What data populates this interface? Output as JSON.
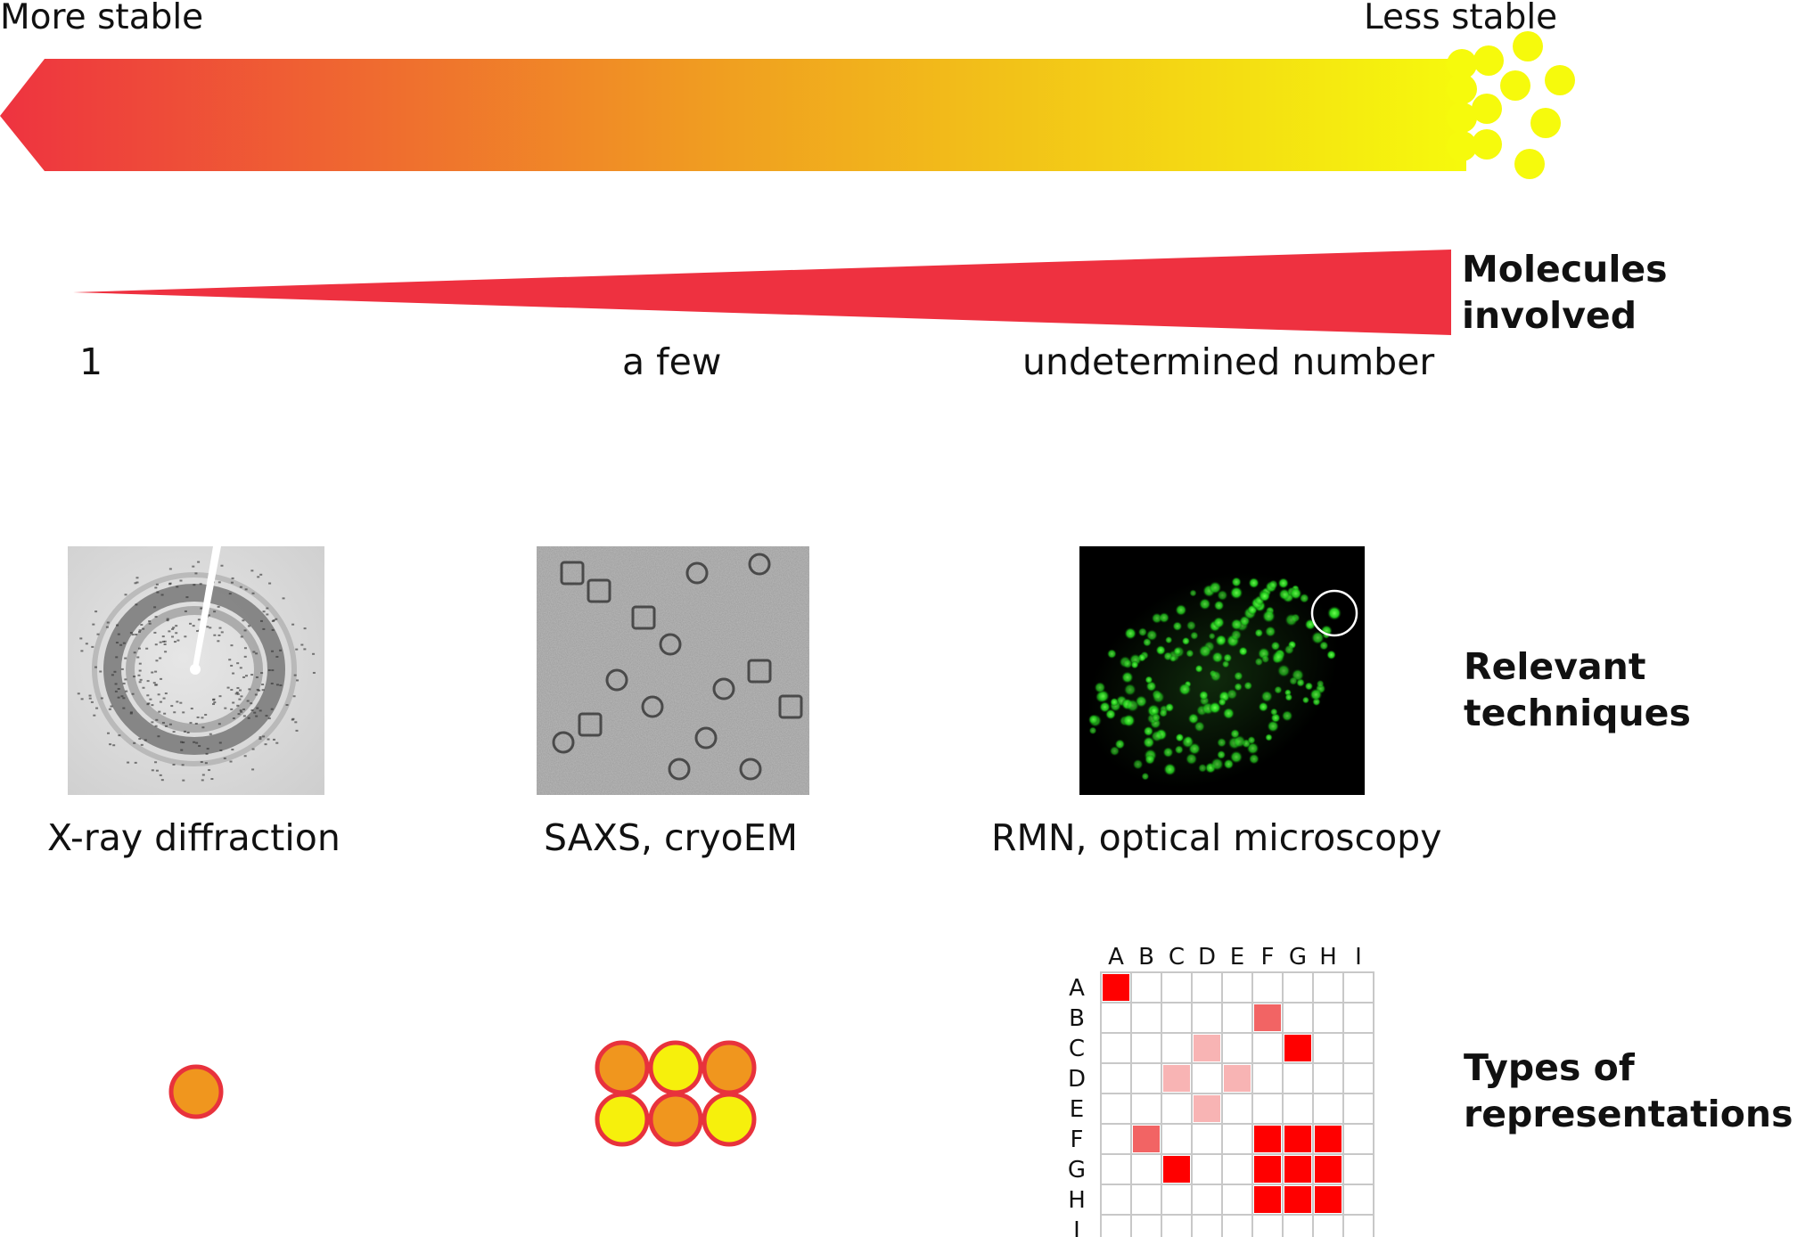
{
  "stability": {
    "more_label": "More stable",
    "less_label": "Less stable",
    "gradient_start": "#ee3340",
    "gradient_mid": "#f0a020",
    "gradient_end": "#f6fa0c",
    "particle_color": "#f6fa0c"
  },
  "molecules": {
    "wedge_color": "#ee3140",
    "title": "Molecules\ninvolved",
    "scale_labels": [
      "1",
      "a few",
      "undetermined number"
    ]
  },
  "techniques": {
    "title": "Relevant\ntechniques",
    "items": [
      {
        "label": "X-ray diffraction",
        "image": "diffraction-pattern"
      },
      {
        "label": "SAXS, cryoEM",
        "image": "cryoem-micrograph"
      },
      {
        "label": "RMN, optical microscopy",
        "image": "fluorescence-micrograph"
      }
    ]
  },
  "representations": {
    "title": "Types of\nrepresentations",
    "single_color": "#f0961e",
    "cluster_colors": [
      "#f0961e",
      "#f6f00c",
      "#f0961e",
      "#f6f00c",
      "#f0961e",
      "#f6f00c"
    ],
    "outline_color": "#e8323c",
    "matrix": {
      "labels": [
        "A",
        "B",
        "C",
        "D",
        "E",
        "F",
        "G",
        "H",
        "I"
      ],
      "colors": {
        "strong": "#ff0000",
        "medium": "#f26464",
        "light": "#f8b4b4"
      },
      "cells": [
        {
          "row": 0,
          "col": 0,
          "level": "strong"
        },
        {
          "row": 1,
          "col": 5,
          "level": "medium"
        },
        {
          "row": 2,
          "col": 3,
          "level": "light"
        },
        {
          "row": 2,
          "col": 6,
          "level": "strong"
        },
        {
          "row": 3,
          "col": 2,
          "level": "light"
        },
        {
          "row": 3,
          "col": 4,
          "level": "light"
        },
        {
          "row": 4,
          "col": 3,
          "level": "light"
        },
        {
          "row": 5,
          "col": 1,
          "level": "medium"
        },
        {
          "row": 5,
          "col": 5,
          "level": "strong"
        },
        {
          "row": 5,
          "col": 6,
          "level": "strong"
        },
        {
          "row": 5,
          "col": 7,
          "level": "strong"
        },
        {
          "row": 6,
          "col": 2,
          "level": "strong"
        },
        {
          "row": 6,
          "col": 5,
          "level": "strong"
        },
        {
          "row": 6,
          "col": 6,
          "level": "strong"
        },
        {
          "row": 6,
          "col": 7,
          "level": "strong"
        },
        {
          "row": 7,
          "col": 5,
          "level": "strong"
        },
        {
          "row": 7,
          "col": 6,
          "level": "strong"
        },
        {
          "row": 7,
          "col": 7,
          "level": "strong"
        }
      ]
    }
  }
}
